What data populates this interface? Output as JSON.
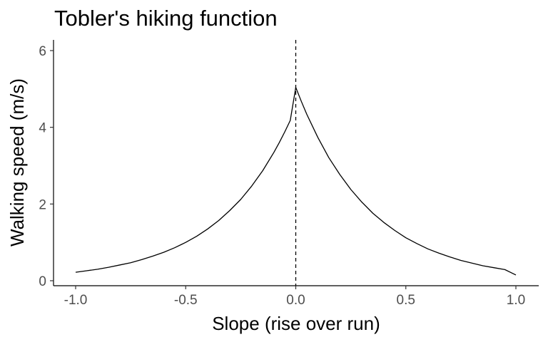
{
  "chart_data": {
    "type": "line",
    "title": "Tobler's hiking function",
    "xlabel": "Slope (rise over run)",
    "ylabel": "Walking speed (m/s)",
    "xlim": [
      -1.0,
      1.0
    ],
    "ylim": [
      0,
      6
    ],
    "x_ticks": [
      -1.0,
      -0.5,
      0.0,
      0.5,
      1.0
    ],
    "x_tick_labels": [
      "-1.0",
      "-0.5",
      "0.0",
      "0.5",
      "1.0"
    ],
    "y_ticks": [
      0,
      2,
      4,
      6
    ],
    "y_tick_labels": [
      "0",
      "2",
      "4",
      "6"
    ],
    "grid": false,
    "legend": "none",
    "reference_lines": [
      {
        "orientation": "vertical",
        "x": 0.0,
        "style": "dashed",
        "color": "#000000"
      }
    ],
    "series": [
      {
        "color": "#000000",
        "x": [
          -1.0,
          -0.95,
          -0.9,
          -0.85,
          -0.8,
          -0.75,
          -0.7,
          -0.65,
          -0.6,
          -0.55,
          -0.5,
          -0.45,
          -0.4,
          -0.35,
          -0.3,
          -0.25,
          -0.2,
          -0.15,
          -0.1,
          -0.075,
          -0.05,
          -0.025,
          0.0,
          0.025,
          0.05,
          0.1,
          0.15,
          0.2,
          0.25,
          0.3,
          0.35,
          0.4,
          0.45,
          0.5,
          0.55,
          0.6,
          0.65,
          0.7,
          0.75,
          0.8,
          0.85,
          0.9,
          0.95,
          1.0
        ],
        "y": [
          0.22,
          0.26,
          0.3,
          0.35,
          0.41,
          0.47,
          0.55,
          0.64,
          0.74,
          0.86,
          1.0,
          1.16,
          1.35,
          1.57,
          1.83,
          2.12,
          2.47,
          2.87,
          3.34,
          3.6,
          3.88,
          4.18,
          5.04,
          4.68,
          4.34,
          3.74,
          3.21,
          2.77,
          2.38,
          2.05,
          1.76,
          1.52,
          1.31,
          1.12,
          0.97,
          0.83,
          0.72,
          0.62,
          0.53,
          0.46,
          0.39,
          0.34,
          0.29,
          0.15
        ]
      }
    ]
  }
}
